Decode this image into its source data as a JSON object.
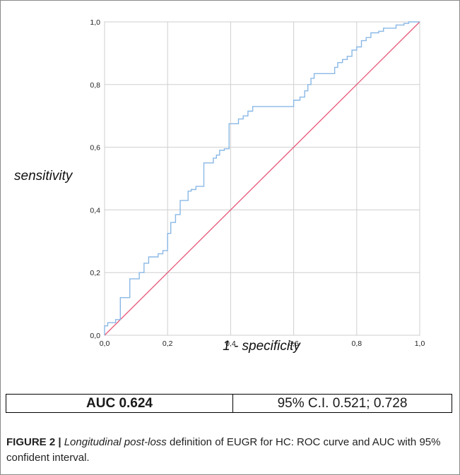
{
  "chart_data": {
    "type": "line",
    "xlabel": "1 - specificity",
    "ylabel": "sensitivity",
    "xlim": [
      0,
      1
    ],
    "ylim": [
      0,
      1
    ],
    "x_ticks": [
      "0,0",
      "0,2",
      "0,4",
      "0,6",
      "0,8",
      "1,0"
    ],
    "y_ticks": [
      "0,0",
      "0,2",
      "0,4",
      "0,6",
      "0,8",
      "1,0"
    ],
    "grid": true,
    "colors": {
      "roc": "#8ab8e6",
      "reference": "#e8577a"
    },
    "series": [
      {
        "style": "step",
        "x": [
          0.0,
          0.0,
          0.01,
          0.01,
          0.035,
          0.035,
          0.05,
          0.05,
          0.08,
          0.08,
          0.11,
          0.11,
          0.125,
          0.125,
          0.14,
          0.14,
          0.17,
          0.17,
          0.185,
          0.185,
          0.2,
          0.2,
          0.21,
          0.21,
          0.225,
          0.225,
          0.24,
          0.24,
          0.265,
          0.265,
          0.275,
          0.275,
          0.29,
          0.29,
          0.305,
          0.305,
          0.315,
          0.315,
          0.345,
          0.345,
          0.355,
          0.355,
          0.365,
          0.365,
          0.38,
          0.38,
          0.395,
          0.395,
          0.425,
          0.425,
          0.44,
          0.44,
          0.455,
          0.455,
          0.47,
          0.47,
          0.485,
          0.485,
          0.6,
          0.6,
          0.62,
          0.62,
          0.635,
          0.635,
          0.645,
          0.645,
          0.655,
          0.655,
          0.665,
          0.665,
          0.68,
          0.68,
          0.73,
          0.73,
          0.74,
          0.74,
          0.755,
          0.755,
          0.77,
          0.77,
          0.785,
          0.785,
          0.8,
          0.8,
          0.815,
          0.815,
          0.83,
          0.83,
          0.845,
          0.845,
          0.87,
          0.87,
          0.885,
          0.885,
          0.925,
          0.925,
          0.95,
          0.95,
          0.965,
          0.965,
          1.0
        ],
        "y": [
          0.0,
          0.03,
          0.03,
          0.04,
          0.04,
          0.05,
          0.05,
          0.12,
          0.12,
          0.18,
          0.18,
          0.2,
          0.2,
          0.23,
          0.23,
          0.25,
          0.25,
          0.26,
          0.26,
          0.27,
          0.27,
          0.325,
          0.325,
          0.36,
          0.36,
          0.385,
          0.385,
          0.43,
          0.43,
          0.46,
          0.46,
          0.465,
          0.465,
          0.475,
          0.475,
          0.475,
          0.475,
          0.55,
          0.55,
          0.565,
          0.565,
          0.575,
          0.575,
          0.59,
          0.59,
          0.595,
          0.595,
          0.675,
          0.675,
          0.69,
          0.69,
          0.7,
          0.7,
          0.715,
          0.715,
          0.73,
          0.73,
          0.73,
          0.73,
          0.75,
          0.75,
          0.76,
          0.76,
          0.78,
          0.78,
          0.8,
          0.8,
          0.82,
          0.82,
          0.835,
          0.835,
          0.835,
          0.835,
          0.855,
          0.855,
          0.87,
          0.87,
          0.88,
          0.88,
          0.89,
          0.89,
          0.91,
          0.91,
          0.92,
          0.92,
          0.94,
          0.94,
          0.95,
          0.95,
          0.965,
          0.965,
          0.97,
          0.97,
          0.98,
          0.98,
          0.99,
          0.99,
          0.995,
          0.995,
          1.0,
          1.0
        ]
      },
      {
        "style": "line",
        "x": [
          0,
          1
        ],
        "y": [
          0,
          1
        ]
      }
    ]
  },
  "auc_table": {
    "auc": "AUC 0.624",
    "ci": "95% C.I. 0.521; 0.728"
  },
  "caption": {
    "label": "FIGURE 2 |",
    "italic": "Longitudinal post-loss",
    "rest": " definition of EUGR for HC: ROC curve and AUC with 95% confident interval."
  }
}
